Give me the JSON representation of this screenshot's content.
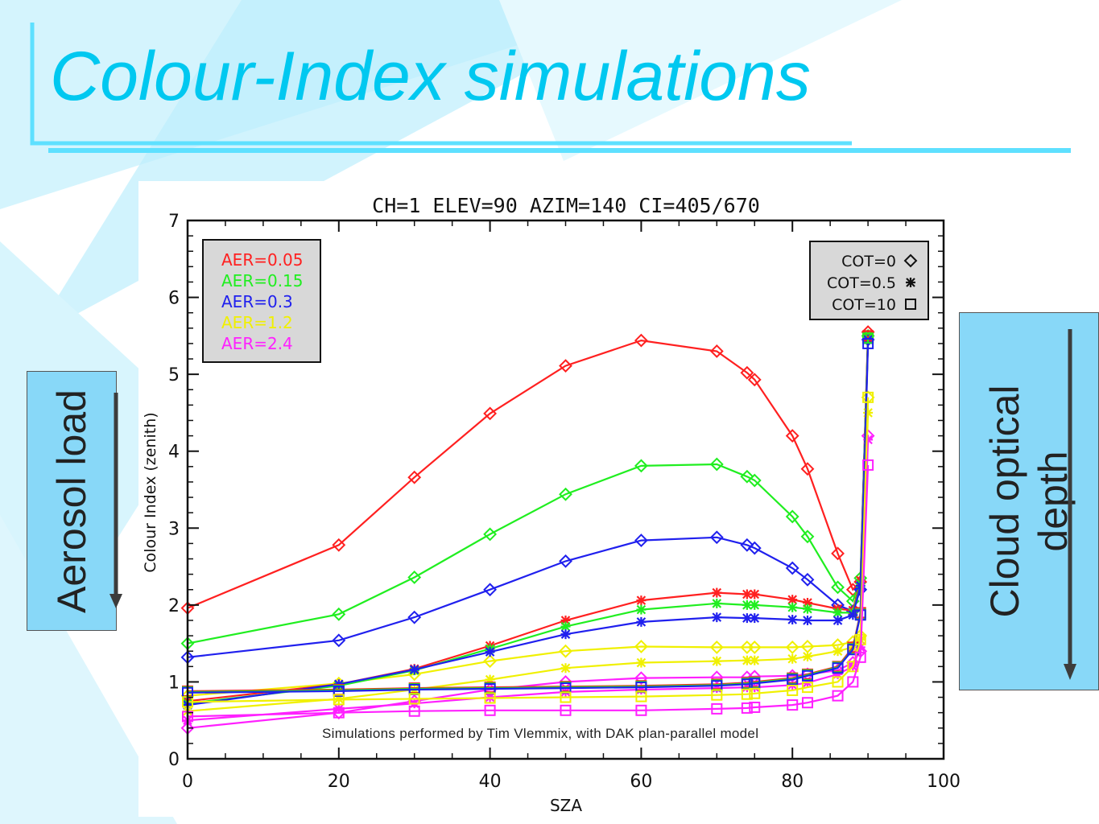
{
  "slide": {
    "title": "Colour-Index simulations",
    "left_label": "Aerosol load",
    "right_label_line1": "Cloud optical",
    "right_label_line2": "depth",
    "credit": "Simulations performed by Tim Vlemmix, with DAK plan-parallel model"
  },
  "colors": {
    "title": "#00c8f0",
    "accent_line": "#5ee0ff",
    "side_box": "#88d8f8"
  },
  "chart_data": {
    "type": "line",
    "title": "CH=1  ELEV=90  AZIM=140  CI=405/670",
    "xlabel": "SZA",
    "ylabel": "Colour Index (zenith)",
    "xlim": [
      0,
      100
    ],
    "ylim": [
      0,
      7
    ],
    "xticks": [
      "0",
      "20",
      "40",
      "60",
      "80",
      "100"
    ],
    "yticks": [
      "0",
      "1",
      "2",
      "3",
      "4",
      "5",
      "6",
      "7"
    ],
    "x": [
      0,
      20,
      30,
      40,
      50,
      60,
      70,
      74,
      75,
      80,
      82,
      86,
      88,
      89,
      90
    ],
    "legend_aerosol_placement": "top-left",
    "legend_cot_placement": "top-right",
    "aerosol_legend": [
      {
        "label": "AER=0.05",
        "color": "#ff2020"
      },
      {
        "label": "AER=0.15",
        "color": "#20ee20"
      },
      {
        "label": "AER=0.3",
        "color": "#2020ee"
      },
      {
        "label": "AER=1.2",
        "color": "#f0f000"
      },
      {
        "label": "AER=2.4",
        "color": "#ff20ff"
      }
    ],
    "cot_legend": [
      {
        "label": "COT=0",
        "marker": "diamond"
      },
      {
        "label": "COT=0.5",
        "marker": "asterisk"
      },
      {
        "label": "COT=10",
        "marker": "square"
      }
    ],
    "series": [
      {
        "aer": "AER=0.05",
        "cot": "COT=0",
        "color": "#ff2020",
        "marker": "diamond",
        "values": [
          1.96,
          2.78,
          3.66,
          4.49,
          5.11,
          5.44,
          5.3,
          5.02,
          4.93,
          4.2,
          3.77,
          2.67,
          2.2,
          2.3,
          5.55
        ]
      },
      {
        "aer": "AER=0.15",
        "cot": "COT=0",
        "color": "#20ee20",
        "marker": "diamond",
        "values": [
          1.5,
          1.88,
          2.36,
          2.92,
          3.44,
          3.81,
          3.83,
          3.67,
          3.62,
          3.15,
          2.89,
          2.23,
          2.05,
          2.35,
          5.5
        ]
      },
      {
        "aer": "AER=0.3",
        "cot": "COT=0",
        "color": "#2020ee",
        "marker": "diamond",
        "values": [
          1.32,
          1.54,
          1.84,
          2.2,
          2.57,
          2.84,
          2.88,
          2.78,
          2.74,
          2.48,
          2.33,
          2.0,
          1.92,
          2.2,
          5.45
        ]
      },
      {
        "aer": "AER=1.2",
        "cot": "COT=0",
        "color": "#f0f000",
        "marker": "diamond",
        "values": [
          0.82,
          0.98,
          1.1,
          1.27,
          1.4,
          1.46,
          1.45,
          1.45,
          1.45,
          1.45,
          1.46,
          1.48,
          1.52,
          1.6,
          4.7
        ]
      },
      {
        "aer": "AER=2.4",
        "cot": "COT=0",
        "color": "#ff20ff",
        "marker": "diamond",
        "values": [
          0.4,
          0.6,
          0.75,
          0.9,
          1.0,
          1.05,
          1.06,
          1.06,
          1.07,
          1.08,
          1.1,
          1.15,
          1.25,
          1.4,
          4.2
        ]
      },
      {
        "aer": "AER=0.05",
        "cot": "COT=0.5",
        "color": "#ff2020",
        "marker": "asterisk",
        "values": [
          0.75,
          0.97,
          1.17,
          1.47,
          1.8,
          2.06,
          2.16,
          2.14,
          2.14,
          2.07,
          2.03,
          1.95,
          1.93,
          2.32,
          5.5
        ]
      },
      {
        "aer": "AER=0.15",
        "cot": "COT=0.5",
        "color": "#20ee20",
        "marker": "asterisk",
        "values": [
          0.72,
          0.95,
          1.15,
          1.43,
          1.72,
          1.94,
          2.02,
          2.0,
          2.0,
          1.97,
          1.95,
          1.9,
          1.9,
          2.28,
          5.48
        ]
      },
      {
        "aer": "AER=0.3",
        "cot": "COT=0.5",
        "color": "#2020ee",
        "marker": "asterisk",
        "values": [
          0.7,
          0.97,
          1.16,
          1.39,
          1.62,
          1.78,
          1.84,
          1.83,
          1.83,
          1.81,
          1.8,
          1.8,
          1.87,
          2.25,
          5.45
        ]
      },
      {
        "aer": "AER=1.2",
        "cot": "COT=0.5",
        "color": "#f0f000",
        "marker": "asterisk",
        "values": [
          0.62,
          0.78,
          0.9,
          1.03,
          1.18,
          1.25,
          1.27,
          1.28,
          1.28,
          1.3,
          1.33,
          1.4,
          1.45,
          1.55,
          4.5
        ]
      },
      {
        "aer": "AER=2.4",
        "cot": "COT=0.5",
        "color": "#ff20ff",
        "marker": "asterisk",
        "values": [
          0.5,
          0.65,
          0.72,
          0.8,
          0.87,
          0.9,
          0.92,
          0.93,
          0.93,
          0.96,
          0.99,
          1.1,
          1.2,
          1.45,
          4.15
        ]
      },
      {
        "aer": "AER=0.05",
        "cot": "COT=10",
        "color": "#ff2020",
        "marker": "square",
        "values": [
          0.88,
          0.9,
          0.92,
          0.93,
          0.94,
          0.95,
          0.97,
          0.99,
          1.0,
          1.05,
          1.1,
          1.2,
          1.45,
          1.9,
          5.5
        ]
      },
      {
        "aer": "AER=0.15",
        "cot": "COT=10",
        "color": "#20ee20",
        "marker": "square",
        "values": [
          0.87,
          0.89,
          0.91,
          0.92,
          0.93,
          0.94,
          0.96,
          0.98,
          0.99,
          1.04,
          1.09,
          1.19,
          1.43,
          1.88,
          5.47
        ]
      },
      {
        "aer": "AER=0.3",
        "cot": "COT=10",
        "color": "#2020ee",
        "marker": "square",
        "values": [
          0.86,
          0.88,
          0.9,
          0.91,
          0.92,
          0.93,
          0.95,
          0.97,
          0.98,
          1.03,
          1.08,
          1.18,
          1.42,
          1.87,
          5.4
        ]
      },
      {
        "aer": "AER=1.2",
        "cot": "COT=10",
        "color": "#f0f000",
        "marker": "square",
        "values": [
          0.74,
          0.77,
          0.78,
          0.79,
          0.8,
          0.81,
          0.83,
          0.84,
          0.85,
          0.89,
          0.93,
          1.0,
          1.2,
          1.55,
          4.7
        ]
      },
      {
        "aer": "AER=2.4",
        "cot": "COT=10",
        "color": "#ff20ff",
        "marker": "square",
        "values": [
          0.55,
          0.6,
          0.62,
          0.63,
          0.63,
          0.63,
          0.65,
          0.66,
          0.67,
          0.7,
          0.73,
          0.82,
          1.0,
          1.32,
          3.82
        ]
      }
    ]
  }
}
